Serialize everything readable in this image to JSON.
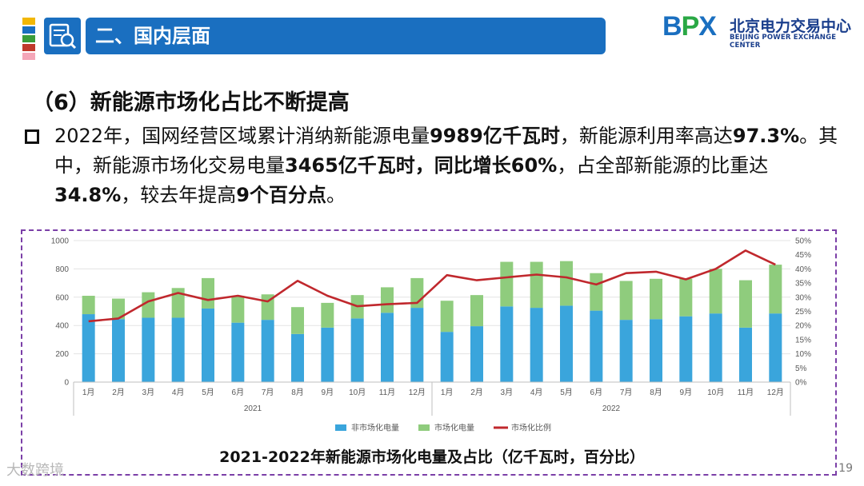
{
  "header": {
    "title": "二、国内层面",
    "colors": {
      "bar": "#1a6fc0",
      "stripes": [
        "#f2b705",
        "#1a6fc0",
        "#3a9d3a",
        "#c0392b",
        "#f4a6b8"
      ]
    },
    "icon": "document-magnifier-icon"
  },
  "logo": {
    "mark": "BPX",
    "cn": "北京电力交易中心",
    "en": "BEIJING POWER EXCHANGE CENTER",
    "colors": {
      "mark": "#1a6fc0",
      "accent": "#2aa845",
      "text": "#1a3e8c"
    }
  },
  "subtitle": "（6）新能源市场化占比不断提高",
  "paragraph": {
    "s1": "2022年，国网经营区域累计消纳新能源电量",
    "b1": "9989亿千瓦时",
    "s2": "，新能源利用率高达",
    "b2": "97.3%",
    "s3": "。其中，新能源市场化交易电量",
    "b3": "3465亿千瓦时，同比增长60%",
    "s4": "，占全部新能源的比重达",
    "b4": "34.8%",
    "s5": "，较去年提高",
    "b5": "9个百分点",
    "s6": "。"
  },
  "chart_data": {
    "type": "bar",
    "stacked": true,
    "title": "2021-2022年新能源市场化电量及占比（亿千瓦时，百分比）",
    "categories": [
      "1月",
      "2月",
      "3月",
      "4月",
      "5月",
      "6月",
      "7月",
      "8月",
      "9月",
      "10月",
      "11月",
      "12月",
      "1月",
      "2月",
      "3月",
      "4月",
      "5月",
      "6月",
      "7月",
      "8月",
      "9月",
      "10月",
      "11月",
      "12月"
    ],
    "groups": [
      {
        "label": "2021",
        "months": 12
      },
      {
        "label": "2022",
        "months": 12
      }
    ],
    "series": [
      {
        "name": "非市场化电量",
        "axis": "left",
        "color": "#3aa5dc",
        "values": [
          480,
          445,
          455,
          455,
          520,
          420,
          440,
          340,
          385,
          450,
          490,
          525,
          355,
          395,
          535,
          525,
          540,
          505,
          440,
          445,
          465,
          485,
          385,
          485
        ]
      },
      {
        "name": "市场化电量",
        "axis": "left",
        "color": "#8fcc7d",
        "values": [
          130,
          145,
          180,
          210,
          215,
          190,
          180,
          190,
          175,
          165,
          180,
          210,
          220,
          220,
          315,
          325,
          315,
          265,
          275,
          285,
          265,
          315,
          335,
          345
        ]
      },
      {
        "name": "市场化比例",
        "axis": "right",
        "type": "line",
        "color": "#c0282d",
        "values": [
          21.5,
          22.5,
          28.5,
          31.5,
          29.0,
          30.5,
          28.5,
          35.8,
          30.5,
          26.8,
          27.5,
          28.0,
          37.8,
          36.0,
          37.0,
          38.0,
          37.0,
          34.5,
          38.5,
          39.0,
          36.3,
          40.0,
          46.5,
          41.5
        ]
      }
    ],
    "yLeft": {
      "min": 0,
      "max": 1000,
      "ticks": [
        "0",
        "200",
        "400",
        "600",
        "800",
        "1000"
      ]
    },
    "yRight": {
      "min": 0,
      "max": 50,
      "ticks": [
        "0%",
        "5%",
        "10%",
        "15%",
        "20%",
        "25%",
        "30%",
        "35%",
        "40%",
        "45%",
        "50%"
      ]
    },
    "legend_position": "bottom",
    "grid": true
  },
  "page_number": "19",
  "watermark": "大数跨境"
}
